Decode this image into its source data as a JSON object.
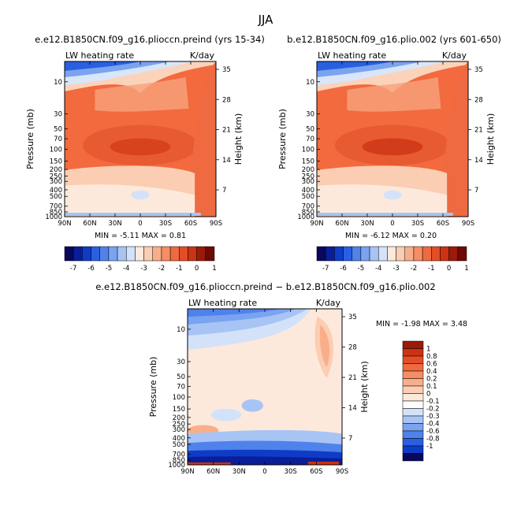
{
  "figure_title": "JJA",
  "colors": {
    "cold_scale": [
      "#08085e",
      "#0a1e9a",
      "#0f3cc7",
      "#2a5fe0",
      "#4f82ea",
      "#7aa3f0",
      "#a8c4f5",
      "#d4e2f9"
    ],
    "warm_scale": [
      "#fde9dc",
      "#fbcdb2",
      "#f9ae8a",
      "#f58e63",
      "#ef6a40",
      "#e44d26",
      "#cc3312",
      "#9b1a0a",
      "#6e0a05"
    ]
  },
  "chart_data": [
    {
      "id": "panel-preind",
      "type": "heatmap",
      "subtitle": "e.e12.B1850CN.f09_g16.plioccn.preind (yrs 15-34)",
      "left_label": "LW heating rate",
      "right_label": "K/day",
      "ylabel": "Pressure (mb)",
      "ylabel_right": "Height (km)",
      "x_ticks": [
        "90N",
        "60N",
        "30N",
        "0",
        "30S",
        "60S",
        "90S"
      ],
      "y_ticks": [
        "10",
        "30",
        "50",
        "70",
        "100",
        "150",
        "200",
        "250",
        "300",
        "400",
        "500",
        "700",
        "850",
        "1000"
      ],
      "height_ticks": [
        "35",
        "28",
        "21",
        "14",
        "7"
      ],
      "stats_text": "MIN =   -5.11   MAX =    0.81",
      "min": -5.11,
      "max": 0.81
    },
    {
      "id": "panel-plio",
      "type": "heatmap",
      "subtitle": "b.e12.B1850CN.f09_g16.plio.002 (yrs 601-650)",
      "left_label": "LW heating rate",
      "right_label": "K/day",
      "ylabel": "Pressure (mb)",
      "ylabel_right": "Height (km)",
      "x_ticks": [
        "90N",
        "60N",
        "30N",
        "0",
        "30S",
        "60S",
        "90S"
      ],
      "y_ticks": [
        "10",
        "30",
        "50",
        "70",
        "100",
        "150",
        "200",
        "250",
        "300",
        "400",
        "500",
        "700",
        "850",
        "1000"
      ],
      "height_ticks": [
        "35",
        "28",
        "21",
        "14",
        "7"
      ],
      "stats_text": "MIN =   -6.12   MAX =    0.20",
      "min": -6.12,
      "max": 0.2
    },
    {
      "id": "panel-diff",
      "type": "heatmap",
      "subtitle": "e.e12.B1850CN.f09_g16.plioccn.preind − b.e12.B1850CN.f09_g16.plio.002",
      "left_label": "LW heating rate",
      "right_label": "K/day",
      "ylabel": "Pressure (mb)",
      "ylabel_right": "Height (km)",
      "x_ticks": [
        "90N",
        "60N",
        "30N",
        "0",
        "30S",
        "60S",
        "90S"
      ],
      "y_ticks": [
        "10",
        "30",
        "50",
        "70",
        "100",
        "150",
        "200",
        "250",
        "300",
        "400",
        "500",
        "700",
        "850",
        "1000"
      ],
      "height_ticks": [
        "35",
        "28",
        "21",
        "14",
        "7"
      ],
      "stats_text": "MIN =   -1.98   MAX =    3.48",
      "min": -1.98,
      "max": 3.48
    }
  ],
  "colorbar_top": {
    "tick_labels": [
      "-7",
      "-6",
      "-5",
      "-4",
      "-3",
      "-2",
      "-1",
      "0",
      "1"
    ]
  },
  "colorbar_diff": {
    "tick_labels": [
      "1",
      "0.8",
      "0.6",
      "0.4",
      "0.2",
      "0.1",
      "0",
      "-0.1",
      "-0.2",
      "-0.3",
      "-0.4",
      "-0.6",
      "-0.8",
      "-1"
    ]
  }
}
